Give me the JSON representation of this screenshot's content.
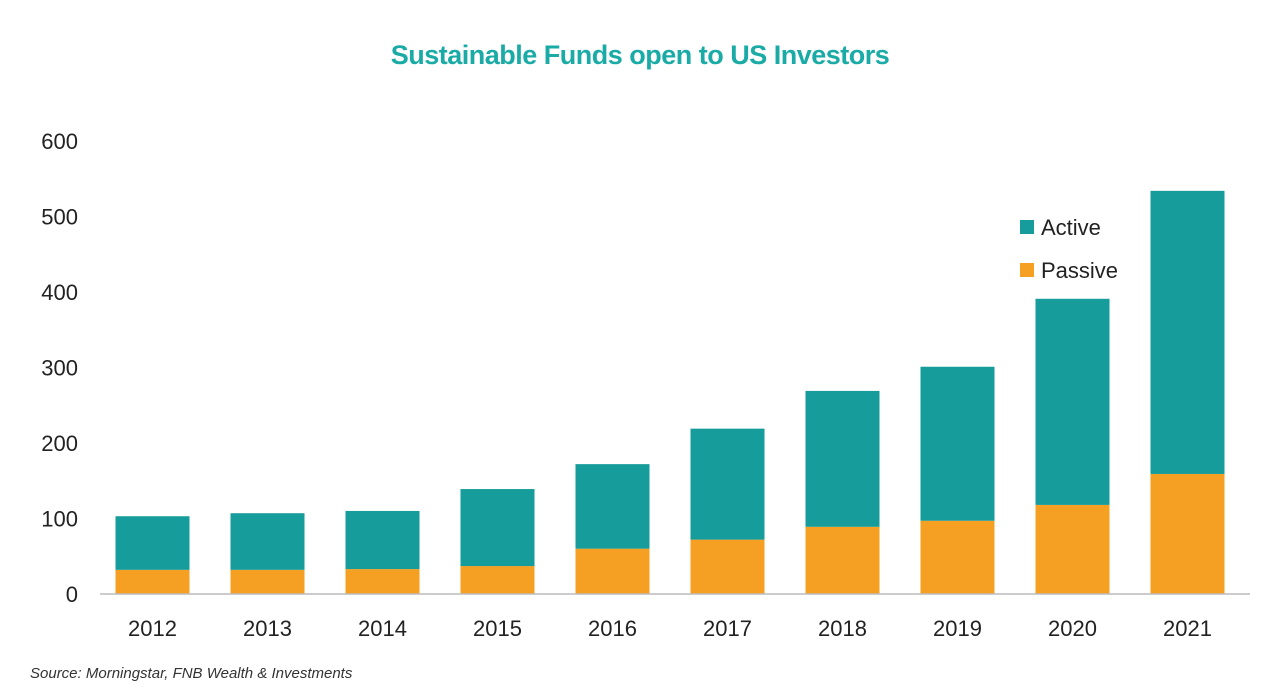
{
  "chart_data": {
    "type": "bar",
    "stacked": true,
    "title": "Sustainable Funds open to US Investors",
    "xlabel": "",
    "ylabel": "",
    "categories": [
      "2012",
      "2013",
      "2014",
      "2015",
      "2016",
      "2017",
      "2018",
      "2019",
      "2020",
      "2021"
    ],
    "series": [
      {
        "name": "Passive",
        "color": "#f5a023",
        "values": [
          32,
          32,
          33,
          37,
          60,
          72,
          89,
          97,
          118,
          159
        ]
      },
      {
        "name": "Active",
        "color": "#169c9a",
        "values": [
          71,
          75,
          77,
          102,
          112,
          147,
          180,
          204,
          273,
          375
        ]
      }
    ],
    "ylim": [
      0,
      600
    ],
    "yticks": [
      0,
      100,
      200,
      300,
      400,
      500,
      600
    ],
    "grid": false,
    "legend_placement": "top-right",
    "legend_order": [
      "Active",
      "Passive"
    ]
  },
  "source": "Source: Morningstar, FNB Wealth & Investments"
}
